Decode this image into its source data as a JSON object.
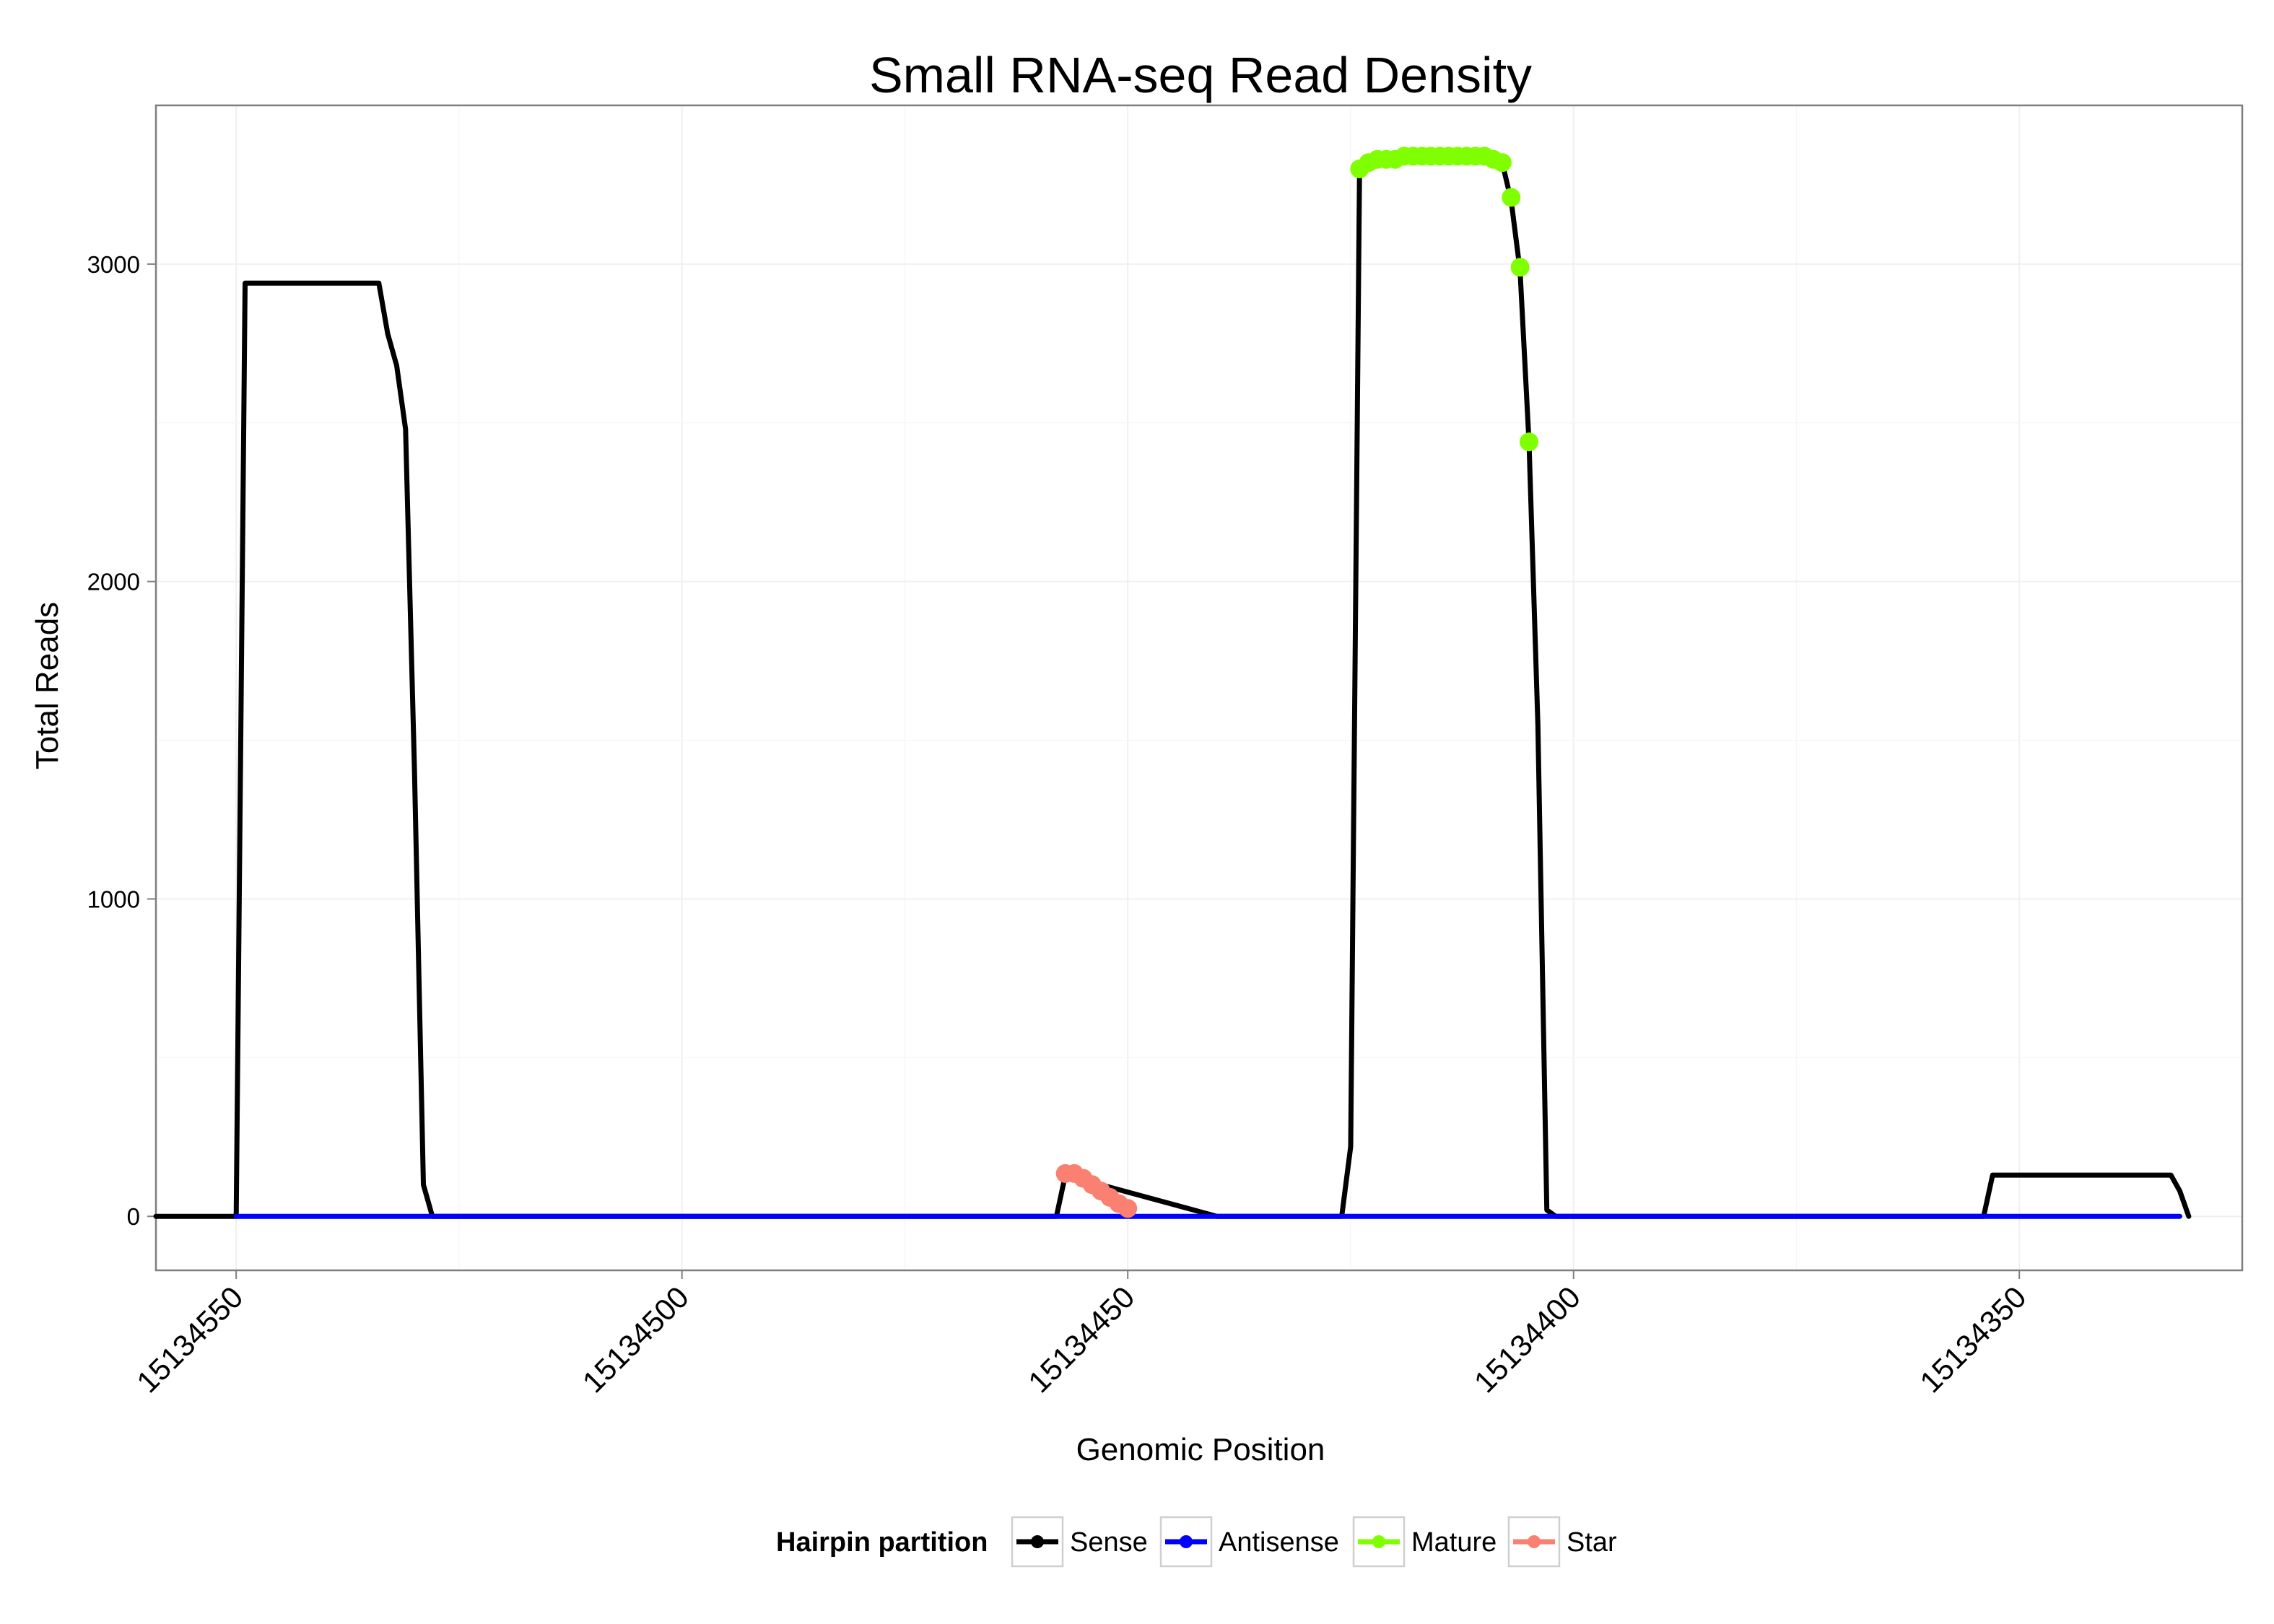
{
  "chart_data": {
    "type": "line",
    "title": "Small RNA-seq Read Density",
    "xlabel": "Genomic Position",
    "ylabel": "Total Reads",
    "x_reversed": true,
    "xlim": [
      15134559,
      15134325
    ],
    "ylim": [
      -170,
      3500
    ],
    "x_ticks": [
      15134550,
      15134500,
      15134450,
      15134400,
      15134350
    ],
    "x_tick_labels": [
      "15134550",
      "15134500",
      "15134450",
      "15134400",
      "15134350"
    ],
    "y_ticks": [
      0,
      1000,
      2000,
      3000
    ],
    "y_tick_labels": [
      "0",
      "1000",
      "2000",
      "3000"
    ],
    "grid": true,
    "legend": {
      "title": "Hairpin partition",
      "position": "bottom",
      "items": [
        "Sense",
        "Antisense",
        "Mature",
        "Star"
      ]
    },
    "colors": {
      "Sense": "#000000",
      "Antisense": "#0000ff",
      "Mature": "#7fff00",
      "Star": "#fa8072"
    },
    "series": [
      {
        "name": "Sense",
        "style": "line",
        "x": [
          15134559,
          15134550,
          15134549,
          15134548,
          15134547,
          15134546,
          15134545,
          15134544,
          15134543,
          15134542,
          15134541,
          15134540,
          15134539,
          15134538,
          15134537,
          15134536,
          15134535,
          15134534,
          15134533,
          15134532,
          15134531,
          15134530,
          15134529,
          15134528,
          15134527,
          15134526,
          15134520,
          15134500,
          15134475,
          15134459,
          15134458,
          15134457,
          15134440,
          15134432,
          15134428,
          15134427,
          15134426,
          15134425,
          15134424,
          15134420,
          15134415,
          15134410,
          15134408,
          15134407,
          15134406,
          15134405,
          15134404,
          15134403,
          15134402,
          15134400,
          15134370,
          15134355,
          15134354,
          15134353,
          15134350,
          15134347,
          15134345,
          15134343,
          15134340,
          15134333,
          15134332,
          15134331
        ],
        "y": [
          0,
          0,
          2940,
          2940,
          2940,
          2940,
          2940,
          2940,
          2940,
          2940,
          2940,
          2940,
          2940,
          2940,
          2940,
          2940,
          2940,
          2940,
          2780,
          2680,
          2480,
          1400,
          100,
          0,
          0,
          0,
          0,
          0,
          0,
          0,
          0,
          130,
          0,
          0,
          0,
          0,
          0,
          220,
          3300,
          3330,
          3340,
          3340,
          3320,
          3200,
          2980,
          2440,
          1550,
          20,
          0,
          0,
          0,
          0,
          0,
          130,
          130,
          130,
          130,
          130,
          130,
          130,
          80,
          0
        ]
      },
      {
        "name": "Antisense",
        "style": "line",
        "x": [
          15134550,
          15134332
        ],
        "y": [
          0,
          0
        ]
      },
      {
        "name": "Mature",
        "style": "points",
        "x": [
          15134424,
          15134423,
          15134422,
          15134421,
          15134420,
          15134419,
          15134418,
          15134417,
          15134416,
          15134415,
          15134414,
          15134413,
          15134412,
          15134411,
          15134410,
          15134409,
          15134408,
          15134407,
          15134406,
          15134405
        ],
        "y": [
          3300,
          3320,
          3330,
          3330,
          3330,
          3340,
          3340,
          3340,
          3340,
          3340,
          3340,
          3340,
          3340,
          3340,
          3340,
          3330,
          3320,
          3210,
          2990,
          2440
        ]
      },
      {
        "name": "Star",
        "style": "points",
        "x": [
          15134457,
          15134456,
          15134455,
          15134454,
          15134453,
          15134452,
          15134451,
          15134450
        ],
        "y": [
          135,
          135,
          120,
          100,
          80,
          60,
          40,
          25
        ]
      }
    ]
  }
}
